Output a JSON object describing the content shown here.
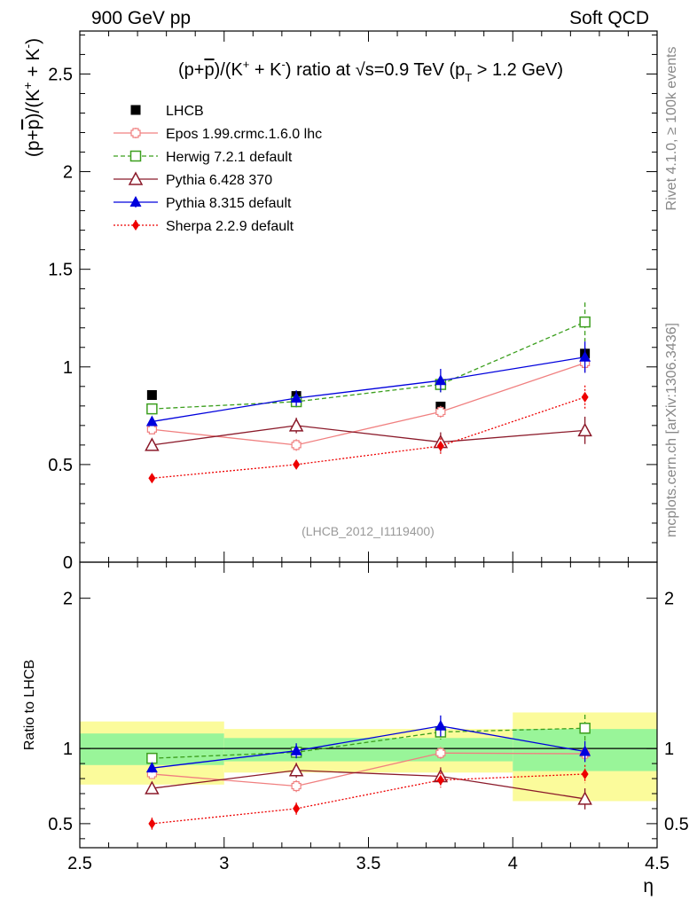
{
  "header": {
    "left": "900 GeV pp",
    "right": "Soft QCD"
  },
  "side": {
    "rivet": "Rivet 4.1.0, ≥ 100k events",
    "mcplots": "mcplots.cern.ch [arXiv:1306.3436]"
  },
  "chart_data": [
    {
      "type": "scatter",
      "title": "(p+p̄)/(K⁺ + K⁻) ratio at √s=0.9 TeV (pT > 1.2 GeV)",
      "xlabel": "η",
      "ylabel": "(p+p̄)/(K⁺ + K⁻)",
      "analysis_tag": "(LHCB_2012_I1119400)",
      "xlim": [
        2.5,
        4.5
      ],
      "ylim": [
        0,
        2.72
      ],
      "yticks": [
        0,
        0.5,
        1,
        1.5,
        2,
        2.5
      ],
      "ytick_labels": [
        "0",
        "0.5",
        "1",
        "1.5",
        "2",
        "2.5"
      ],
      "x": [
        2.75,
        3.25,
        3.75,
        4.25
      ],
      "series": [
        {
          "name": "LHCB",
          "color": "#000000",
          "marker": "square-filled",
          "values": [
            0.856,
            0.851,
            0.797,
            1.068
          ],
          "errors": [
            0.01,
            0.015,
            0.02,
            0.03
          ]
        },
        {
          "name": "Epos 1.99.crmc.1.6.0 lhc",
          "color": "#f08080",
          "marker": "plus-open",
          "line": "solid",
          "values": [
            0.68,
            0.6,
            0.77,
            1.02
          ],
          "errors": [
            0.02,
            0.03,
            0.03,
            0.05
          ]
        },
        {
          "name": "Herwig 7.2.1 default",
          "color": "#3c9f1e",
          "marker": "square-open",
          "line": "dashed",
          "values": [
            0.785,
            0.822,
            0.91,
            1.23
          ],
          "errors": [
            0.02,
            0.03,
            0.04,
            0.1
          ]
        },
        {
          "name": "Pythia 6.428 370",
          "color": "#8b1a2a",
          "marker": "triangle-open",
          "line": "solid",
          "values": [
            0.6,
            0.7,
            0.615,
            0.675
          ],
          "errors": [
            0.02,
            0.04,
            0.05,
            0.07
          ]
        },
        {
          "name": "Pythia 8.315 default",
          "color": "#0000dd",
          "marker": "triangle-filled",
          "line": "solid",
          "values": [
            0.72,
            0.84,
            0.93,
            1.05
          ],
          "errors": [
            0.02,
            0.04,
            0.06,
            0.08
          ]
        },
        {
          "name": "Sherpa 2.2.9 default",
          "color": "#ee0000",
          "marker": "diamond-filled",
          "line": "dotted",
          "values": [
            0.43,
            0.5,
            0.595,
            0.845
          ],
          "errors": [
            0.02,
            0.02,
            0.04,
            0.06
          ]
        }
      ]
    },
    {
      "type": "scatter",
      "title": "",
      "xlabel": "η",
      "ylabel": "Ratio to LHCB",
      "xlim": [
        2.5,
        4.5
      ],
      "ylim": [
        0.34,
        2.24
      ],
      "xticks": [
        2.5,
        3,
        3.5,
        4,
        4.5
      ],
      "xtick_labels": [
        "2.5",
        "3",
        "3.5",
        "4",
        "4.5"
      ],
      "yticks": [
        0.5,
        1,
        2
      ],
      "ytick_labels": [
        "0.5",
        "1",
        "2"
      ],
      "reference_line": 1,
      "bands": {
        "x_edges": [
          [
            2.5,
            3.0
          ],
          [
            3.0,
            4.0
          ],
          [
            4.0,
            4.5
          ]
        ],
        "green": [
          [
            0.89,
            1.1
          ],
          [
            0.915,
            1.07
          ],
          [
            0.85,
            1.13
          ]
        ],
        "yellow": [
          [
            0.76,
            1.18
          ],
          [
            0.84,
            1.13
          ],
          [
            0.65,
            1.24
          ]
        ],
        "green_color": "#99f599",
        "yellow_color": "#fbfb9b"
      },
      "x": [
        2.75,
        3.25,
        3.75,
        4.25
      ],
      "series": [
        {
          "name": "Epos 1.99.crmc.1.6.0 lhc",
          "color": "#f08080",
          "marker": "plus-open",
          "line": "solid",
          "values": [
            0.83,
            0.75,
            0.97,
            0.965
          ],
          "errors": [
            0.03,
            0.04,
            0.04,
            0.05
          ]
        },
        {
          "name": "Herwig 7.2.1 default",
          "color": "#3c9f1e",
          "marker": "square-open",
          "line": "dashed",
          "values": [
            0.935,
            0.975,
            1.11,
            1.135
          ],
          "errors": [
            0.03,
            0.04,
            0.05,
            0.09
          ]
        },
        {
          "name": "Pythia 6.428 370",
          "color": "#8b1a2a",
          "marker": "triangle-open",
          "line": "solid",
          "values": [
            0.735,
            0.855,
            0.815,
            0.665
          ],
          "errors": [
            0.03,
            0.05,
            0.06,
            0.07
          ]
        },
        {
          "name": "Pythia 8.315 default",
          "color": "#0000dd",
          "marker": "triangle-filled",
          "line": "solid",
          "values": [
            0.87,
            0.985,
            1.15,
            0.98
          ],
          "errors": [
            0.03,
            0.05,
            0.07,
            0.07
          ]
        },
        {
          "name": "Sherpa 2.2.9 default",
          "color": "#ee0000",
          "marker": "diamond-filled",
          "line": "dotted",
          "values": [
            0.5,
            0.6,
            0.79,
            0.83
          ],
          "errors": [
            0.04,
            0.04,
            0.05,
            0.06
          ]
        }
      ]
    }
  ]
}
